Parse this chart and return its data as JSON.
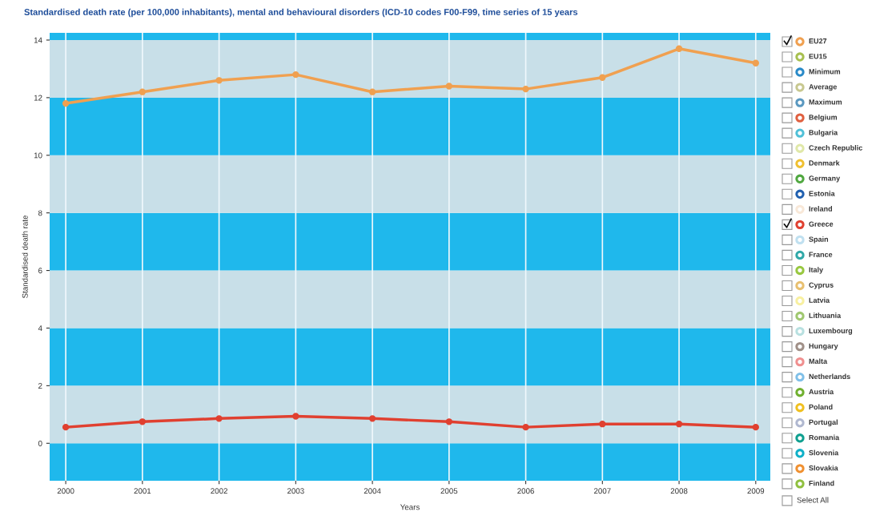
{
  "chart_data": {
    "type": "line",
    "title": "Standardised death rate (per 100,000 inhabitants), mental and behavioural disorders (ICD-10 codes F00-F99, time series of 15 years",
    "xlabel": "Years",
    "ylabel": "Standardised death rate",
    "categories": [
      "2000",
      "2001",
      "2002",
      "2003",
      "2004",
      "2005",
      "2006",
      "2007",
      "2008",
      "2009"
    ],
    "ylim": [
      -1.3,
      14.25
    ],
    "yticks": [
      0,
      2,
      4,
      6,
      8,
      10,
      12,
      14
    ],
    "grid": "x",
    "legend": "right",
    "marker": "circle",
    "line_style": "solid",
    "bands": [
      {
        "axis": "y",
        "from": -1.3,
        "to": 0,
        "color": "#1fb8ec"
      },
      {
        "axis": "y",
        "from": 0,
        "to": 2,
        "color": "#c8dfe8"
      },
      {
        "axis": "y",
        "from": 2,
        "to": 4,
        "color": "#1fb8ec"
      },
      {
        "axis": "y",
        "from": 4,
        "to": 6,
        "color": "#c8dfe8"
      },
      {
        "axis": "y",
        "from": 6,
        "to": 8,
        "color": "#1fb8ec"
      },
      {
        "axis": "y",
        "from": 8,
        "to": 10,
        "color": "#c8dfe8"
      },
      {
        "axis": "y",
        "from": 10,
        "to": 12,
        "color": "#1fb8ec"
      },
      {
        "axis": "y",
        "from": 12,
        "to": 14,
        "color": "#c8dfe8"
      },
      {
        "axis": "y",
        "from": 14,
        "to": 14.25,
        "color": "#1fb8ec"
      }
    ],
    "annotations": [
      "Select All"
    ],
    "series": [
      {
        "name": "EU27",
        "color": "#f0a050",
        "values": [
          11.8,
          12.2,
          12.6,
          12.8,
          12.2,
          12.4,
          12.3,
          12.7,
          13.7,
          13.2
        ]
      },
      {
        "name": "EU15",
        "color": "#a8c050",
        "values": [
          null,
          null,
          null,
          null,
          null,
          null,
          null,
          null,
          null,
          null
        ]
      },
      {
        "name": "Minimum",
        "color": "#2a8ac8",
        "values": [
          null,
          null,
          null,
          null,
          null,
          null,
          null,
          null,
          null,
          null
        ]
      },
      {
        "name": "Average",
        "color": "#c8c890",
        "values": [
          null,
          null,
          null,
          null,
          null,
          null,
          null,
          null,
          null,
          null
        ]
      },
      {
        "name": "Maximum",
        "color": "#5a98c0",
        "values": [
          null,
          null,
          null,
          null,
          null,
          null,
          null,
          null,
          null,
          null
        ]
      },
      {
        "name": "Belgium",
        "color": "#e06040",
        "values": [
          null,
          null,
          null,
          null,
          null,
          null,
          null,
          null,
          null,
          null
        ]
      },
      {
        "name": "Bulgaria",
        "color": "#50c0d8",
        "values": [
          null,
          null,
          null,
          null,
          null,
          null,
          null,
          null,
          null,
          null
        ]
      },
      {
        "name": "Czech Republic",
        "color": "#e0e8a8",
        "values": [
          null,
          null,
          null,
          null,
          null,
          null,
          null,
          null,
          null,
          null
        ]
      },
      {
        "name": "Denmark",
        "color": "#f0c030",
        "values": [
          null,
          null,
          null,
          null,
          null,
          null,
          null,
          null,
          null,
          null
        ]
      },
      {
        "name": "Germany",
        "color": "#50a840",
        "values": [
          null,
          null,
          null,
          null,
          null,
          null,
          null,
          null,
          null,
          null
        ]
      },
      {
        "name": "Estonia",
        "color": "#2060b0",
        "values": [
          null,
          null,
          null,
          null,
          null,
          null,
          null,
          null,
          null,
          null
        ]
      },
      {
        "name": "Ireland",
        "color": "#f8e8d8",
        "values": [
          null,
          null,
          null,
          null,
          null,
          null,
          null,
          null,
          null,
          null
        ]
      },
      {
        "name": "Greece",
        "color": "#e04030",
        "values": [
          0.56,
          0.75,
          0.86,
          0.94,
          0.86,
          0.75,
          0.56,
          0.67,
          0.67,
          0.56
        ]
      },
      {
        "name": "Spain",
        "color": "#c0e0f0",
        "values": [
          null,
          null,
          null,
          null,
          null,
          null,
          null,
          null,
          null,
          null
        ]
      },
      {
        "name": "France",
        "color": "#30a8a8",
        "values": [
          null,
          null,
          null,
          null,
          null,
          null,
          null,
          null,
          null,
          null
        ]
      },
      {
        "name": "Italy",
        "color": "#98c840",
        "values": [
          null,
          null,
          null,
          null,
          null,
          null,
          null,
          null,
          null,
          null
        ]
      },
      {
        "name": "Cyprus",
        "color": "#e8c070",
        "values": [
          null,
          null,
          null,
          null,
          null,
          null,
          null,
          null,
          null,
          null
        ]
      },
      {
        "name": "Latvia",
        "color": "#f8f0a0",
        "values": [
          null,
          null,
          null,
          null,
          null,
          null,
          null,
          null,
          null,
          null
        ]
      },
      {
        "name": "Lithuania",
        "color": "#a0c870",
        "values": [
          null,
          null,
          null,
          null,
          null,
          null,
          null,
          null,
          null,
          null
        ]
      },
      {
        "name": "Luxembourg",
        "color": "#b8e0e0",
        "values": [
          null,
          null,
          null,
          null,
          null,
          null,
          null,
          null,
          null,
          null
        ]
      },
      {
        "name": "Hungary",
        "color": "#a09088",
        "values": [
          null,
          null,
          null,
          null,
          null,
          null,
          null,
          null,
          null,
          null
        ]
      },
      {
        "name": "Malta",
        "color": "#f09090",
        "values": [
          null,
          null,
          null,
          null,
          null,
          null,
          null,
          null,
          null,
          null
        ]
      },
      {
        "name": "Netherlands",
        "color": "#80c0e8",
        "values": [
          null,
          null,
          null,
          null,
          null,
          null,
          null,
          null,
          null,
          null
        ]
      },
      {
        "name": "Austria",
        "color": "#70b030",
        "values": [
          null,
          null,
          null,
          null,
          null,
          null,
          null,
          null,
          null,
          null
        ]
      },
      {
        "name": "Poland",
        "color": "#f0c020",
        "values": [
          null,
          null,
          null,
          null,
          null,
          null,
          null,
          null,
          null,
          null
        ]
      },
      {
        "name": "Portugal",
        "color": "#b0b8d0",
        "values": [
          null,
          null,
          null,
          null,
          null,
          null,
          null,
          null,
          null,
          null
        ]
      },
      {
        "name": "Romania",
        "color": "#10a090",
        "values": [
          null,
          null,
          null,
          null,
          null,
          null,
          null,
          null,
          null,
          null
        ]
      },
      {
        "name": "Slovenia",
        "color": "#10b0c8",
        "values": [
          null,
          null,
          null,
          null,
          null,
          null,
          null,
          null,
          null,
          null
        ]
      },
      {
        "name": "Slovakia",
        "color": "#f09030",
        "values": [
          null,
          null,
          null,
          null,
          null,
          null,
          null,
          null,
          null,
          null
        ]
      },
      {
        "name": "Finland",
        "color": "#90c040",
        "values": [
          null,
          null,
          null,
          null,
          null,
          null,
          null,
          null,
          null,
          null
        ]
      }
    ]
  }
}
